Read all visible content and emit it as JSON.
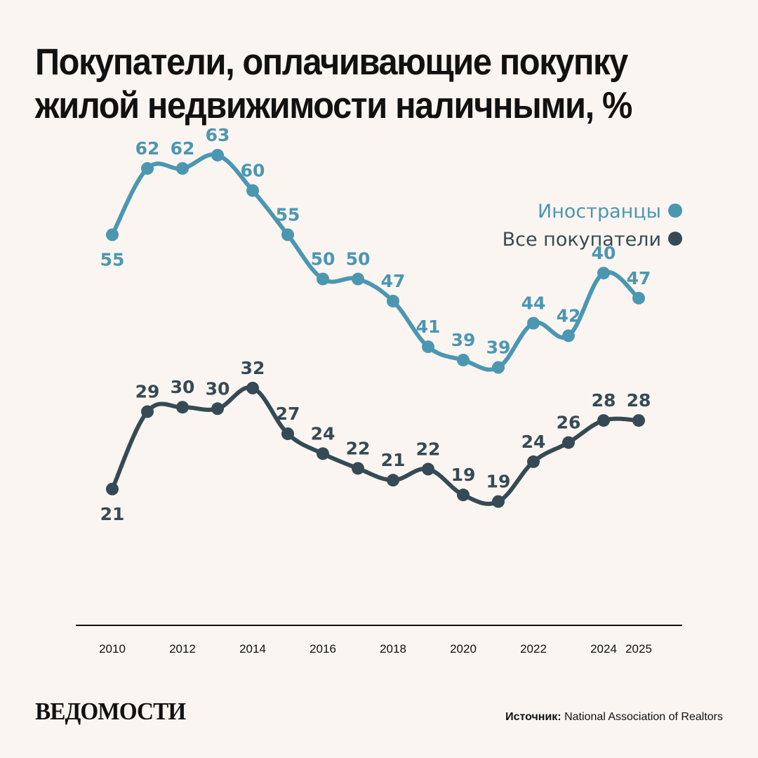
{
  "title": "Покупатели, оплачивающие покупку жилой недвижимости наличными, %",
  "brand": "ВЕДОМОСТИ",
  "source": {
    "label": "Источник:",
    "value": "National Association of Realtors"
  },
  "chart_data": {
    "type": "line",
    "x": [
      2010,
      2011,
      2012,
      2013,
      2014,
      2015,
      2016,
      2017,
      2018,
      2019,
      2020,
      2021,
      2022,
      2023,
      2024,
      2025
    ],
    "x_tick_labels": [
      "2010",
      "",
      "2012",
      "",
      "2014",
      "",
      "2016",
      "",
      "2018",
      "",
      "2020",
      "",
      "2022",
      "",
      "2024",
      "2025"
    ],
    "series": [
      {
        "name": "Иностранцы",
        "color": "#4b97b2",
        "values": [
          55,
          62,
          62,
          63,
          60,
          55,
          50,
          50,
          47,
          41,
          39,
          39,
          44,
          42,
          40,
          47
        ],
        "points_y": [
          53,
          62,
          62,
          63.8,
          59,
          53,
          47,
          47,
          44,
          37.8,
          36,
          35,
          41,
          39.3,
          47.8,
          44.4
        ]
      },
      {
        "name": "Все покупатели",
        "color": "#354a54",
        "values": [
          21,
          29,
          30,
          30,
          32,
          27,
          24,
          22,
          21,
          22,
          19,
          19,
          24,
          26,
          28,
          28
        ],
        "points_y": [
          18.5,
          29,
          29.6,
          29.4,
          32.2,
          26,
          23.3,
          21.3,
          19.7,
          21.2,
          17.7,
          16.8,
          22.2,
          24.8,
          27.8,
          27.8
        ]
      }
    ],
    "label_positions": {
      "Иностранцы": [
        "below",
        "above",
        "above",
        "above",
        "above",
        "above",
        "above",
        "above",
        "above",
        "above",
        "above",
        "above",
        "above",
        "above",
        "above",
        "above"
      ],
      "Все покупатели": [
        "below",
        "above",
        "above",
        "above",
        "above",
        "above",
        "above",
        "above",
        "above",
        "above",
        "above",
        "above",
        "above",
        "above",
        "above",
        "above"
      ]
    },
    "ylim": [
      0,
      70
    ],
    "legend_position": "top-right",
    "grid": false
  }
}
